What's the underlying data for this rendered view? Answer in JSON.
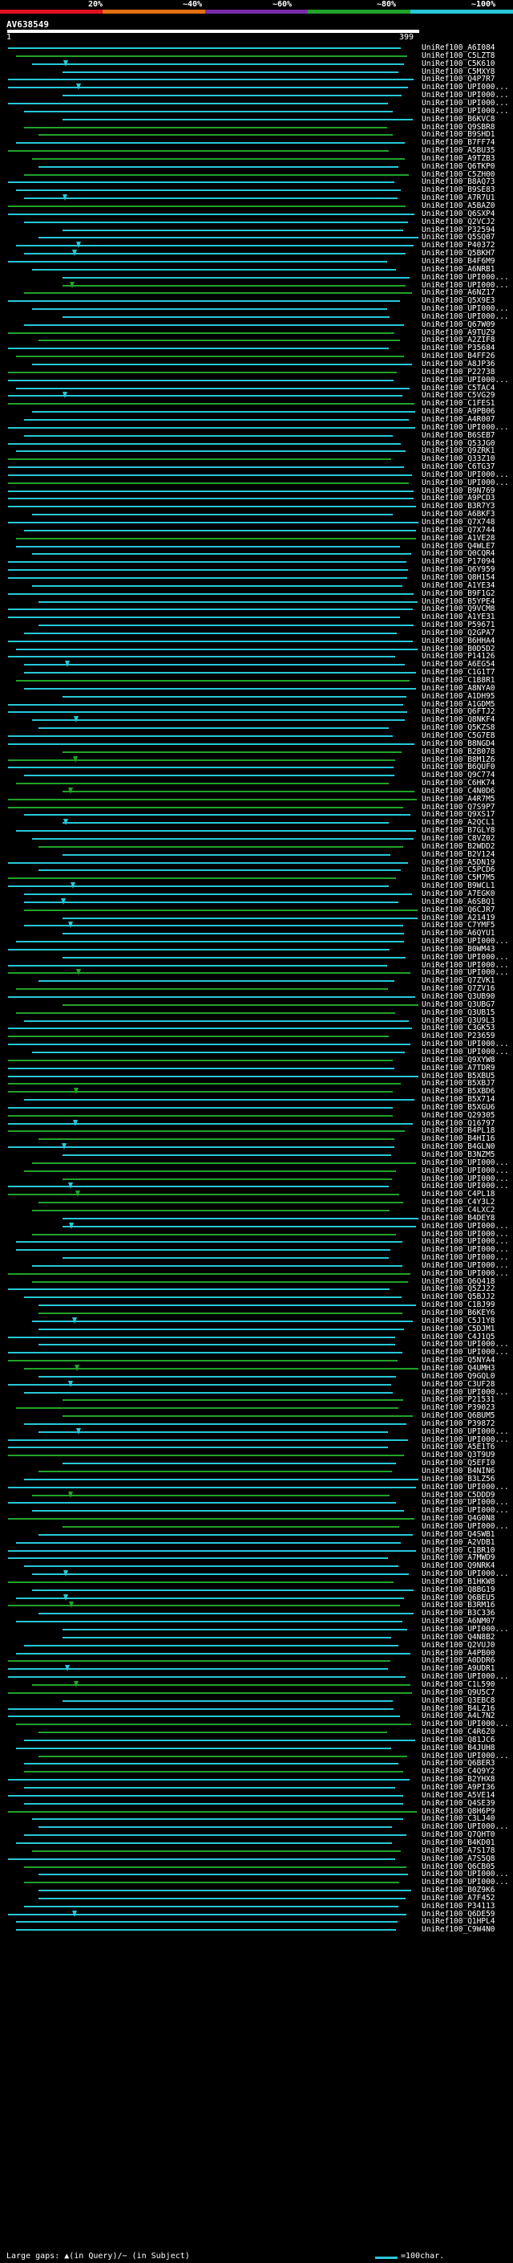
{
  "legend": {
    "labels": [
      "20%",
      "~40%",
      "~60%",
      "~80%",
      "~100%"
    ],
    "colors": [
      "#e01020",
      "#e07010",
      "#7a2ca8",
      "#22a22a",
      "#27c8d8"
    ]
  },
  "query": {
    "id": "AV638549",
    "start": "1",
    "end": "399"
  },
  "footer": {
    "gaps_text": "Large gaps: ▲(in Query)/− (in Subject)",
    "scale_text": "=100char."
  },
  "hits": [
    "UniRef100_A6I084",
    "UniRef100_C5LZT8",
    "UniRef100_C5K610",
    "UniRef100_C5MXY8",
    "UniRef100_Q4P7R7",
    "UniRef100_UPI000...",
    "UniRef100_UPI000...",
    "UniRef100_UPI000...",
    "UniRef100_UPI000...",
    "UniRef100_B6KVC8",
    "UniRef100_Q9SBR8",
    "UniRef100_B9SHD1",
    "UniRef100_B7FF74",
    "UniRef100_A5BU35",
    "UniRef100_A9TZB3",
    "UniRef100_Q6TKP0",
    "UniRef100_C5ZH00",
    "UniRef100_B8AQ73",
    "UniRef100_B9SE83",
    "UniRef100_A7R7U1",
    "UniRef100_A5BAZ0",
    "UniRef100_Q6SXP4",
    "UniRef100_Q2VCJ2",
    "UniRef100_P32594",
    "UniRef100_Q5SQ07",
    "UniRef100_P40372",
    "UniRef100_Q5BKH7",
    "UniRef100_B4F6M9",
    "UniRef100_A6NRB1",
    "UniRef100_UPI000...",
    "UniRef100_UPI000...",
    "UniRef100_A6NZ17",
    "UniRef100_Q5X9E3",
    "UniRef100_UPI000...",
    "UniRef100_UPI000...",
    "UniRef100_Q67W09",
    "UniRef100_A9TUZ9",
    "UniRef100_A2ZIF8",
    "UniRef100_P35684",
    "UniRef100_B4FF26",
    "UniRef100_A8JP36",
    "UniRef100_P22738",
    "UniRef100_UPI000...",
    "UniRef100_C5TAC4",
    "UniRef100_C5VG29",
    "UniRef100_C1FES1",
    "UniRef100_A9PB06",
    "UniRef100_A4R007",
    "UniRef100_UPI000...",
    "UniRef100_B6SEB7",
    "UniRef100_Q53JG0",
    "UniRef100_Q9ZRK1",
    "UniRef100_Q33Z10",
    "UniRef100_C6TG37",
    "UniRef100_UPI000...",
    "UniRef100_UPI000...",
    "UniRef100_B9N769",
    "UniRef100_A9PCD3",
    "UniRef100_B3R7Y3",
    "UniRef100_A6BKF3",
    "UniRef100_Q7X748",
    "UniRef100_Q7X744",
    "UniRef100_A1VE28",
    "UniRef100_Q4WLE7",
    "UniRef100_Q0CQR4",
    "UniRef100_P17094",
    "UniRef100_Q6Y959",
    "UniRef100_Q8H154",
    "UniRef100_A1YE34",
    "UniRef100_B9F1G2",
    "UniRef100_B5YPE4",
    "UniRef100_Q9VCM8",
    "UniRef100_A1YE31",
    "UniRef100_P59671",
    "UniRef100_Q2GPA7",
    "UniRef100_B6HHA4",
    "UniRef100_B0D5D2",
    "UniRef100_P14126",
    "UniRef100_A6EG54",
    "UniRef100_C1G1T7",
    "UniRef100_C1B8R1",
    "UniRef100_A8NYA0",
    "UniRef100_A1DH95",
    "UniRef100_A1GDM5",
    "UniRef100_Q6FTJ2",
    "UniRef100_Q8NKF4",
    "UniRef100_Q5KZS8",
    "UniRef100_C5G7E8",
    "UniRef100_B8NGD4",
    "UniRef100_B2B078",
    "UniRef100_B8M1Z6",
    "UniRef100_B6QUF0",
    "UniRef100_Q9C774",
    "UniRef100_C6HK74",
    "UniRef100_C4N0D6",
    "UniRef100_A4R7M5",
    "UniRef100_Q7S9P7",
    "UniRef100_Q9XS17",
    "UniRef100_A2QCL1",
    "UniRef100_B7GLY8",
    "UniRef100_C8VZ02",
    "UniRef100_B2WDD2",
    "UniRef100_B2V124",
    "UniRef100_A5DN19",
    "UniRef100_C5PCD6",
    "UniRef100_C5M7M5",
    "UniRef100_B9WCL1",
    "UniRef100_A7EGK0",
    "UniRef100_A6SBQ1",
    "UniRef100_Q6CJR7",
    "UniRef100_A21419",
    "UniRef100_C7YMF5",
    "UniRef100_A6QYU1",
    "UniRef100_UPI000...",
    "UniRef100_B0WM43",
    "UniRef100_UPI000...",
    "UniRef100_UPI000...",
    "UniRef100_UPI000...",
    "UniRef100_Q7ZVK1",
    "UniRef100_Q7ZV16",
    "UniRef100_Q3UB90",
    "UniRef100_Q3UBG7",
    "UniRef100_Q3UB15",
    "UniRef100_Q3U9L3",
    "UniRef100_C3GK53",
    "UniRef100_P23659",
    "UniRef100_UPI000...",
    "UniRef100_UPI000...",
    "UniRef100_Q9XYW8",
    "UniRef100_A7TDR9",
    "UniRef100_B5XBU5",
    "UniRef100_B5XBJ7",
    "UniRef100_B5XBD6",
    "UniRef100_B5X714",
    "UniRef100_B5XGU6",
    "UniRef100_Q29305",
    "UniRef100_Q16797",
    "UniRef100_B4PL18",
    "UniRef100_B4HI16",
    "UniRef100_B4GLN0",
    "UniRef100_B3NZM5",
    "UniRef100_UPI000...",
    "UniRef100_UPI000...",
    "UniRef100_UPI000...",
    "UniRef100_UPI000...",
    "UniRef100_C4PL18",
    "UniRef100_C4Y3L2",
    "UniRef100_C4LXC2",
    "UniRef100_B4DEY8",
    "UniRef100_UPI000...",
    "UniRef100_UPI000...",
    "UniRef100_UPI000...",
    "UniRef100_UPI000...",
    "UniRef100_UPI000...",
    "UniRef100_UPI000...",
    "UniRef100_UPI000...",
    "UniRef100_Q6Q418",
    "UniRef100_Q5ZJ22",
    "UniRef100_Q5BJJ2",
    "UniRef100_C1BJ99",
    "UniRef100_B6KEY6",
    "UniRef100_C5J1Y8",
    "UniRef100_C5DJM1",
    "UniRef100_C4J1Q5",
    "UniRef100_UPI000...",
    "UniRef100_UPI000...",
    "UniRef100_Q5NYA4",
    "UniRef100_Q4UMH3",
    "UniRef100_Q9GQL0",
    "UniRef100_C3UF28",
    "UniRef100_UPI000...",
    "UniRef100_P21531",
    "UniRef100_P39023",
    "UniRef100_Q6BUM5",
    "UniRef100_P39872",
    "UniRef100_UPI000...",
    "UniRef100_UPI000...",
    "UniRef100_A5E1T6",
    "UniRef100_Q3T9U9",
    "UniRef100_Q5EFI0",
    "UniRef100_B4NIN6",
    "UniRef100_B3LZ56",
    "UniRef100_UPI000...",
    "UniRef100_C5DDD9",
    "UniRef100_UPI000...",
    "UniRef100_UPI000...",
    "UniRef100_Q4G0N8",
    "UniRef100_UPI000...",
    "UniRef100_Q4SWB1",
    "UniRef100_A2VDB1",
    "UniRef100_C1BR10",
    "UniRef100_A7MWD9",
    "UniRef100_Q9NRK4",
    "UniRef100_UPI000...",
    "UniRef100_B1HKW8",
    "UniRef100_Q8BG19",
    "UniRef100_Q6BEU5",
    "UniRef100_B3RM16",
    "UniRef100_B3C336",
    "UniRef100_A6NM07",
    "UniRef100_UPI000...",
    "UniRef100_Q4N8B2",
    "UniRef100_Q2VUJ0",
    "UniRef100_A4PB00",
    "UniRef100_A0DDR6",
    "UniRef100_A9UDR1",
    "UniRef100_UPI000...",
    "UniRef100_C1L590",
    "UniRef100_Q9U5C7",
    "UniRef100_Q3EBC8",
    "UniRef100_B4LZ16",
    "UniRef100_A4L7N2",
    "UniRef100_UPI000...",
    "UniRef100_C4R6Z0",
    "UniRef100_Q81JC6",
    "UniRef100_B4JUH8",
    "UniRef100_UPI000...",
    "UniRef100_Q6BER3",
    "UniRef100_C4Q9Y2",
    "UniRef100_B2YHX8",
    "UniRef100_A9PI36",
    "UniRef100_A5VE14",
    "UniRef100_Q4SE39",
    "UniRef100_Q8H6P9",
    "UniRef100_C3LJ40",
    "UniRef100_UPI000...",
    "UniRef100_Q7QHT0",
    "UniRef100_B4KD01",
    "UniRef100_A7S178",
    "UniRef100_A7S5Q8",
    "UniRef100_Q6CB05",
    "UniRef100_UPI000...",
    "UniRef100_UPI000...",
    "UniRef100_B0Z9K6",
    "UniRef100_A7F452",
    "UniRef100_P34113",
    "UniRef100_Q6DE59",
    "UniRef100_Q1HPL4",
    "UniRef100_C9W4N0"
  ]
}
